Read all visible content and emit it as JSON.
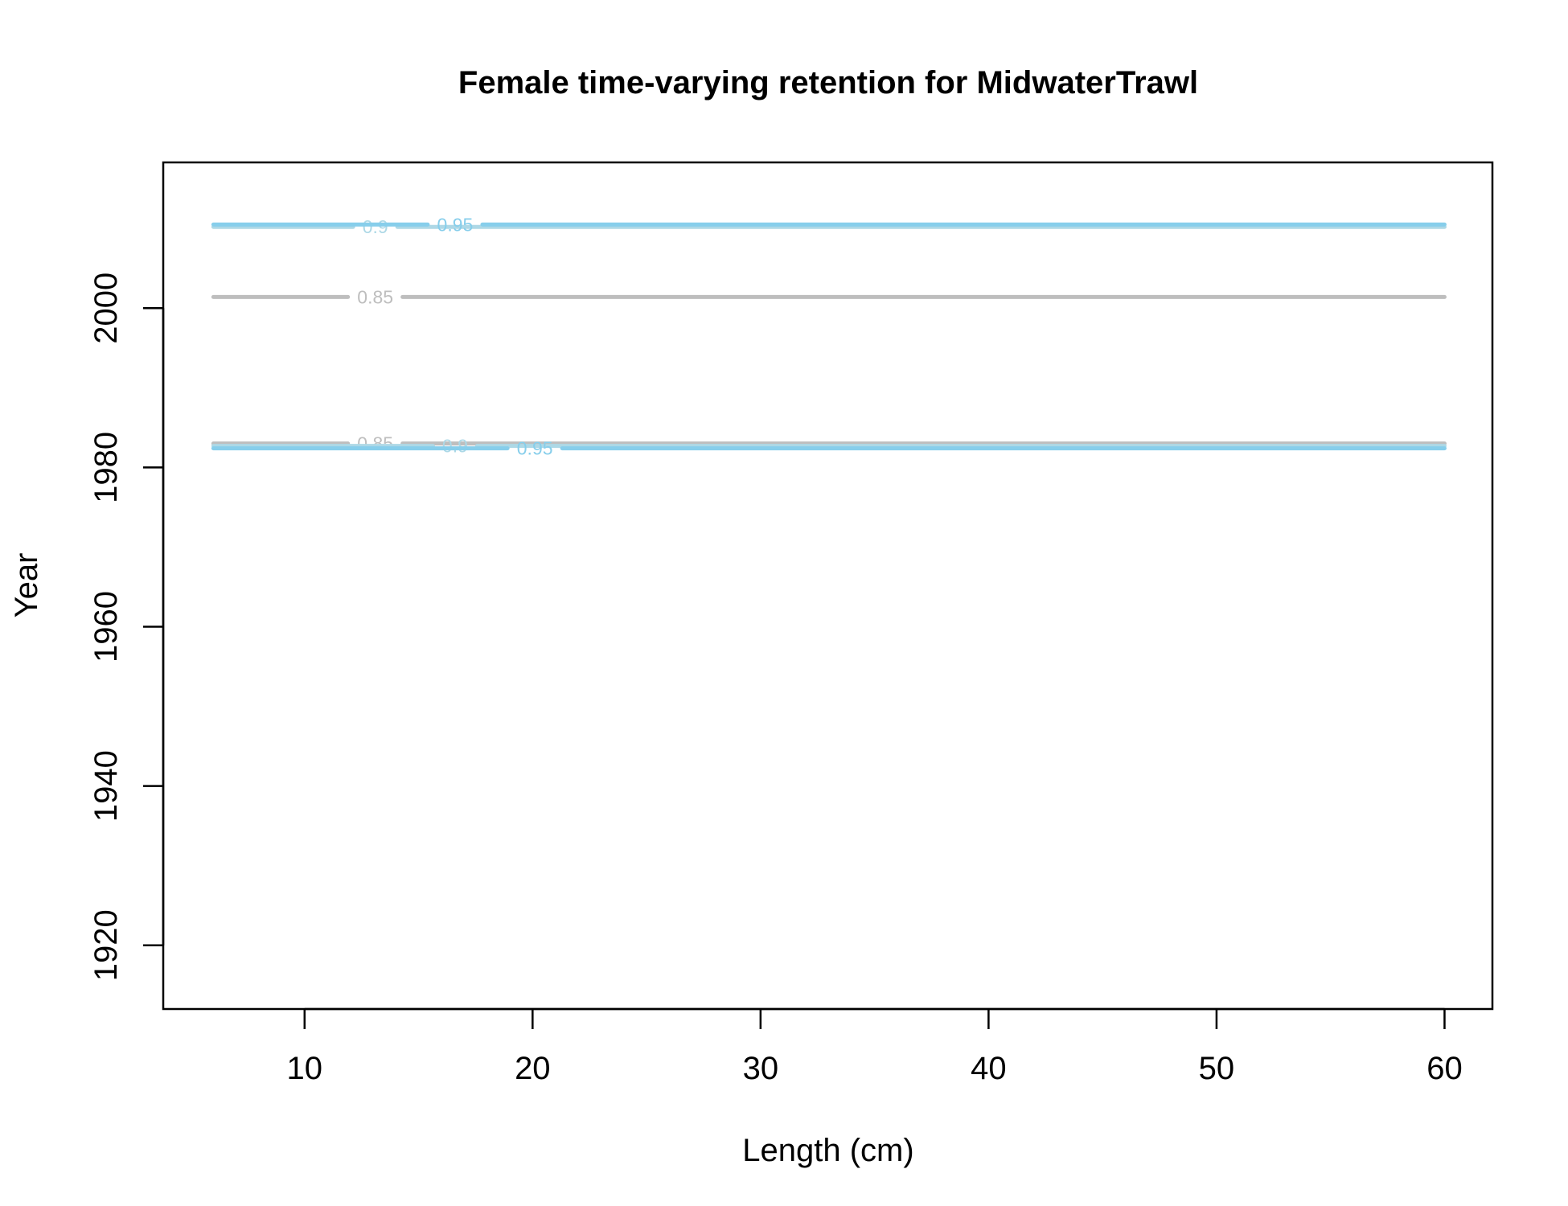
{
  "chart_data": {
    "type": "contour",
    "title": "Female time-varying retention for MidwaterTrawl",
    "xlabel": "Length (cm)",
    "ylabel": "Year",
    "xlim": [
      3.8,
      62.1
    ],
    "ylim": [
      1912,
      2018.3
    ],
    "x_ticks": [
      10,
      20,
      30,
      40,
      50,
      60
    ],
    "y_ticks": [
      1920,
      1940,
      1960,
      1980,
      2000
    ],
    "x_range": [
      6,
      60
    ],
    "colors": {
      "0.85": "#BEBEBE",
      "0.9": "#ADD8E6",
      "0.95": "#87CEEB"
    },
    "contours": [
      {
        "level": "0.85",
        "y": 2001.4,
        "label_x": 13.1
      },
      {
        "level": "0.85",
        "y": 1983.0,
        "label_x": 13.1
      },
      {
        "level": "0.9",
        "y": 1982.7,
        "label_x": 16.6
      },
      {
        "level": "0.95",
        "y": 1982.4,
        "label_x": 20.1
      },
      {
        "level": "0.9",
        "y": 2010.2,
        "label_x": 13.1
      },
      {
        "level": "0.95",
        "y": 2010.5,
        "label_x": 16.6
      }
    ]
  }
}
